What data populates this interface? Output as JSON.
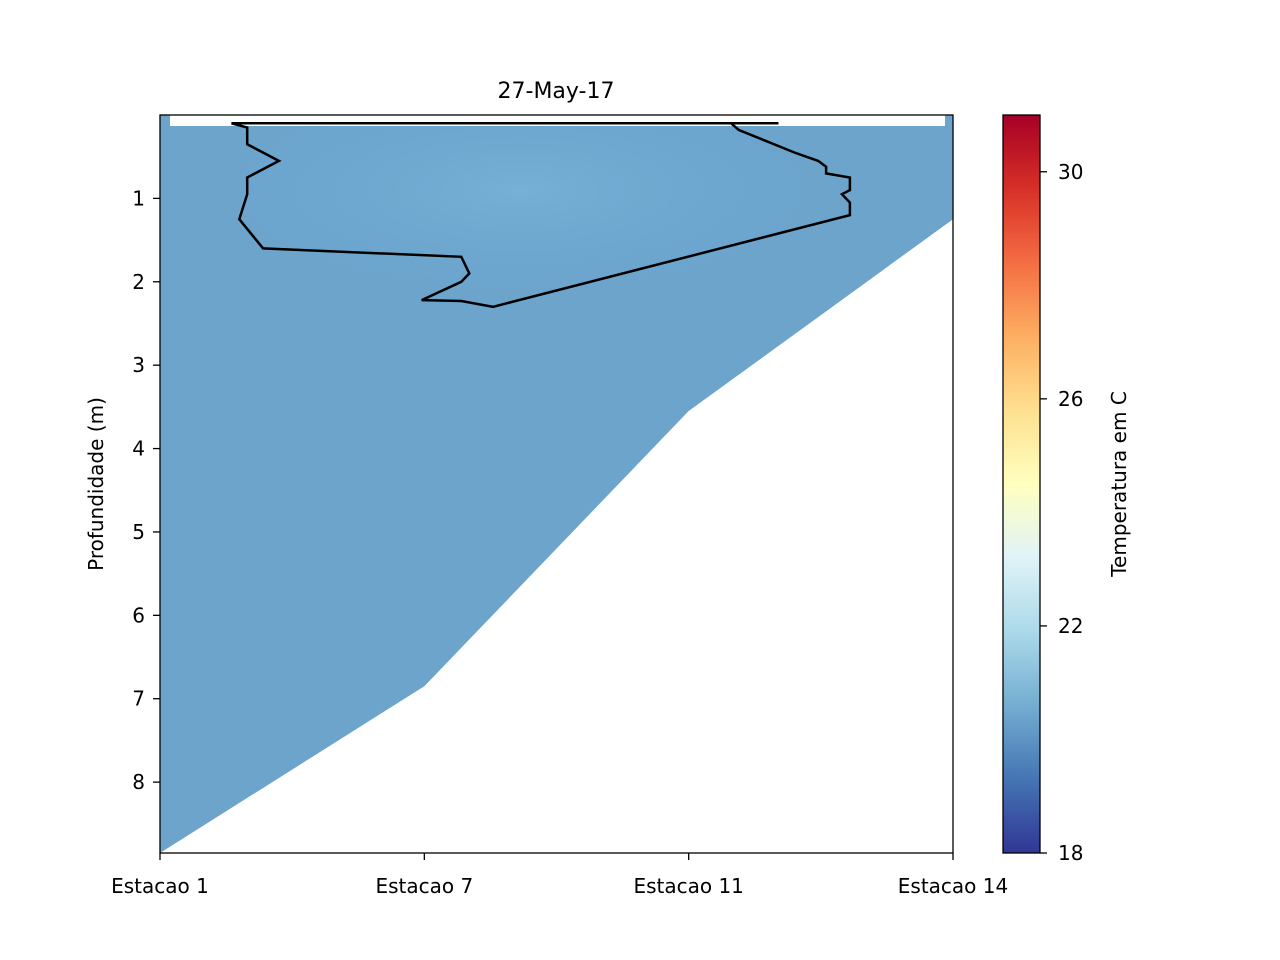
{
  "chart_data": {
    "type": "heatmap",
    "title": "27-May-17",
    "xlabel": "",
    "ylabel": "Profundidade (m)",
    "x_ticks": [
      "Estacao 1",
      "Estacao 7",
      "Estacao 11",
      "Estacao 14"
    ],
    "ylim": [
      8.85,
      0.0
    ],
    "y_ticks": [
      1,
      2,
      3,
      4,
      5,
      6,
      7,
      8
    ],
    "colorbar": {
      "label": "Temperatura em C",
      "range": [
        18,
        31
      ],
      "ticks": [
        18,
        22,
        26,
        30
      ],
      "colormap": "RdYlBu_r"
    },
    "field": {
      "dominant_temperature": 20.9,
      "surface_lens_temperature": 21.1,
      "bottom_boundary": [
        {
          "station": "Estacao 1",
          "depth": 8.85
        },
        {
          "station": "Estacao 7",
          "depth": 6.85
        },
        {
          "station": "Estacao 11",
          "depth": 3.55
        },
        {
          "station": "Estacao 14",
          "depth": 1.25
        }
      ]
    },
    "contour": {
      "points": [
        [
          0.09,
          0.1
        ],
        [
          0.78,
          0.1
        ],
        [
          0.72,
          0.1
        ],
        [
          0.73,
          0.18
        ],
        [
          0.8,
          0.45
        ],
        [
          0.83,
          0.55
        ],
        [
          0.84,
          0.62
        ],
        [
          0.84,
          0.7
        ],
        [
          0.87,
          0.75
        ],
        [
          0.87,
          0.9
        ],
        [
          0.86,
          0.95
        ],
        [
          0.87,
          1.05
        ],
        [
          0.87,
          1.2
        ],
        [
          0.42,
          2.3
        ],
        [
          0.38,
          2.23
        ],
        [
          0.33,
          2.22
        ],
        [
          0.38,
          2.0
        ],
        [
          0.39,
          1.9
        ],
        [
          0.38,
          1.7
        ],
        [
          0.13,
          1.6
        ],
        [
          0.1,
          1.25
        ],
        [
          0.11,
          0.95
        ],
        [
          0.11,
          0.75
        ],
        [
          0.15,
          0.55
        ],
        [
          0.11,
          0.35
        ],
        [
          0.11,
          0.25
        ],
        [
          0.11,
          0.15
        ],
        [
          0.09,
          0.1
        ]
      ]
    }
  }
}
